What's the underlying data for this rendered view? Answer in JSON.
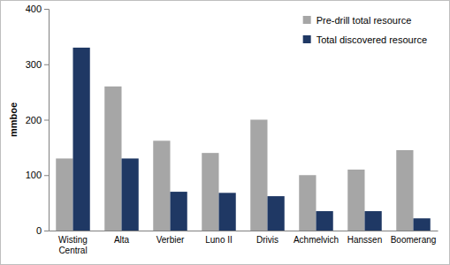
{
  "chart_data": {
    "type": "bar",
    "y_label": "mmboe",
    "categories": [
      "Wisting Central",
      "Alta",
      "Verbier",
      "Luno II",
      "Drivis",
      "Achmelvich",
      "Hanssen",
      "Boomerang"
    ],
    "series": [
      {
        "name": "Pre-drill total resource",
        "color": "#a6a6a6",
        "values": [
          130,
          260,
          162,
          140,
          200,
          100,
          110,
          145
        ]
      },
      {
        "name": "Total discovered resource",
        "color": "#1f3864",
        "values": [
          330,
          130,
          70,
          68,
          62,
          35,
          35,
          22
        ]
      }
    ],
    "ylim": [
      0,
      400
    ],
    "yticks": [
      0,
      100,
      200,
      300,
      400
    ],
    "grid": false,
    "legend": "top-right"
  }
}
